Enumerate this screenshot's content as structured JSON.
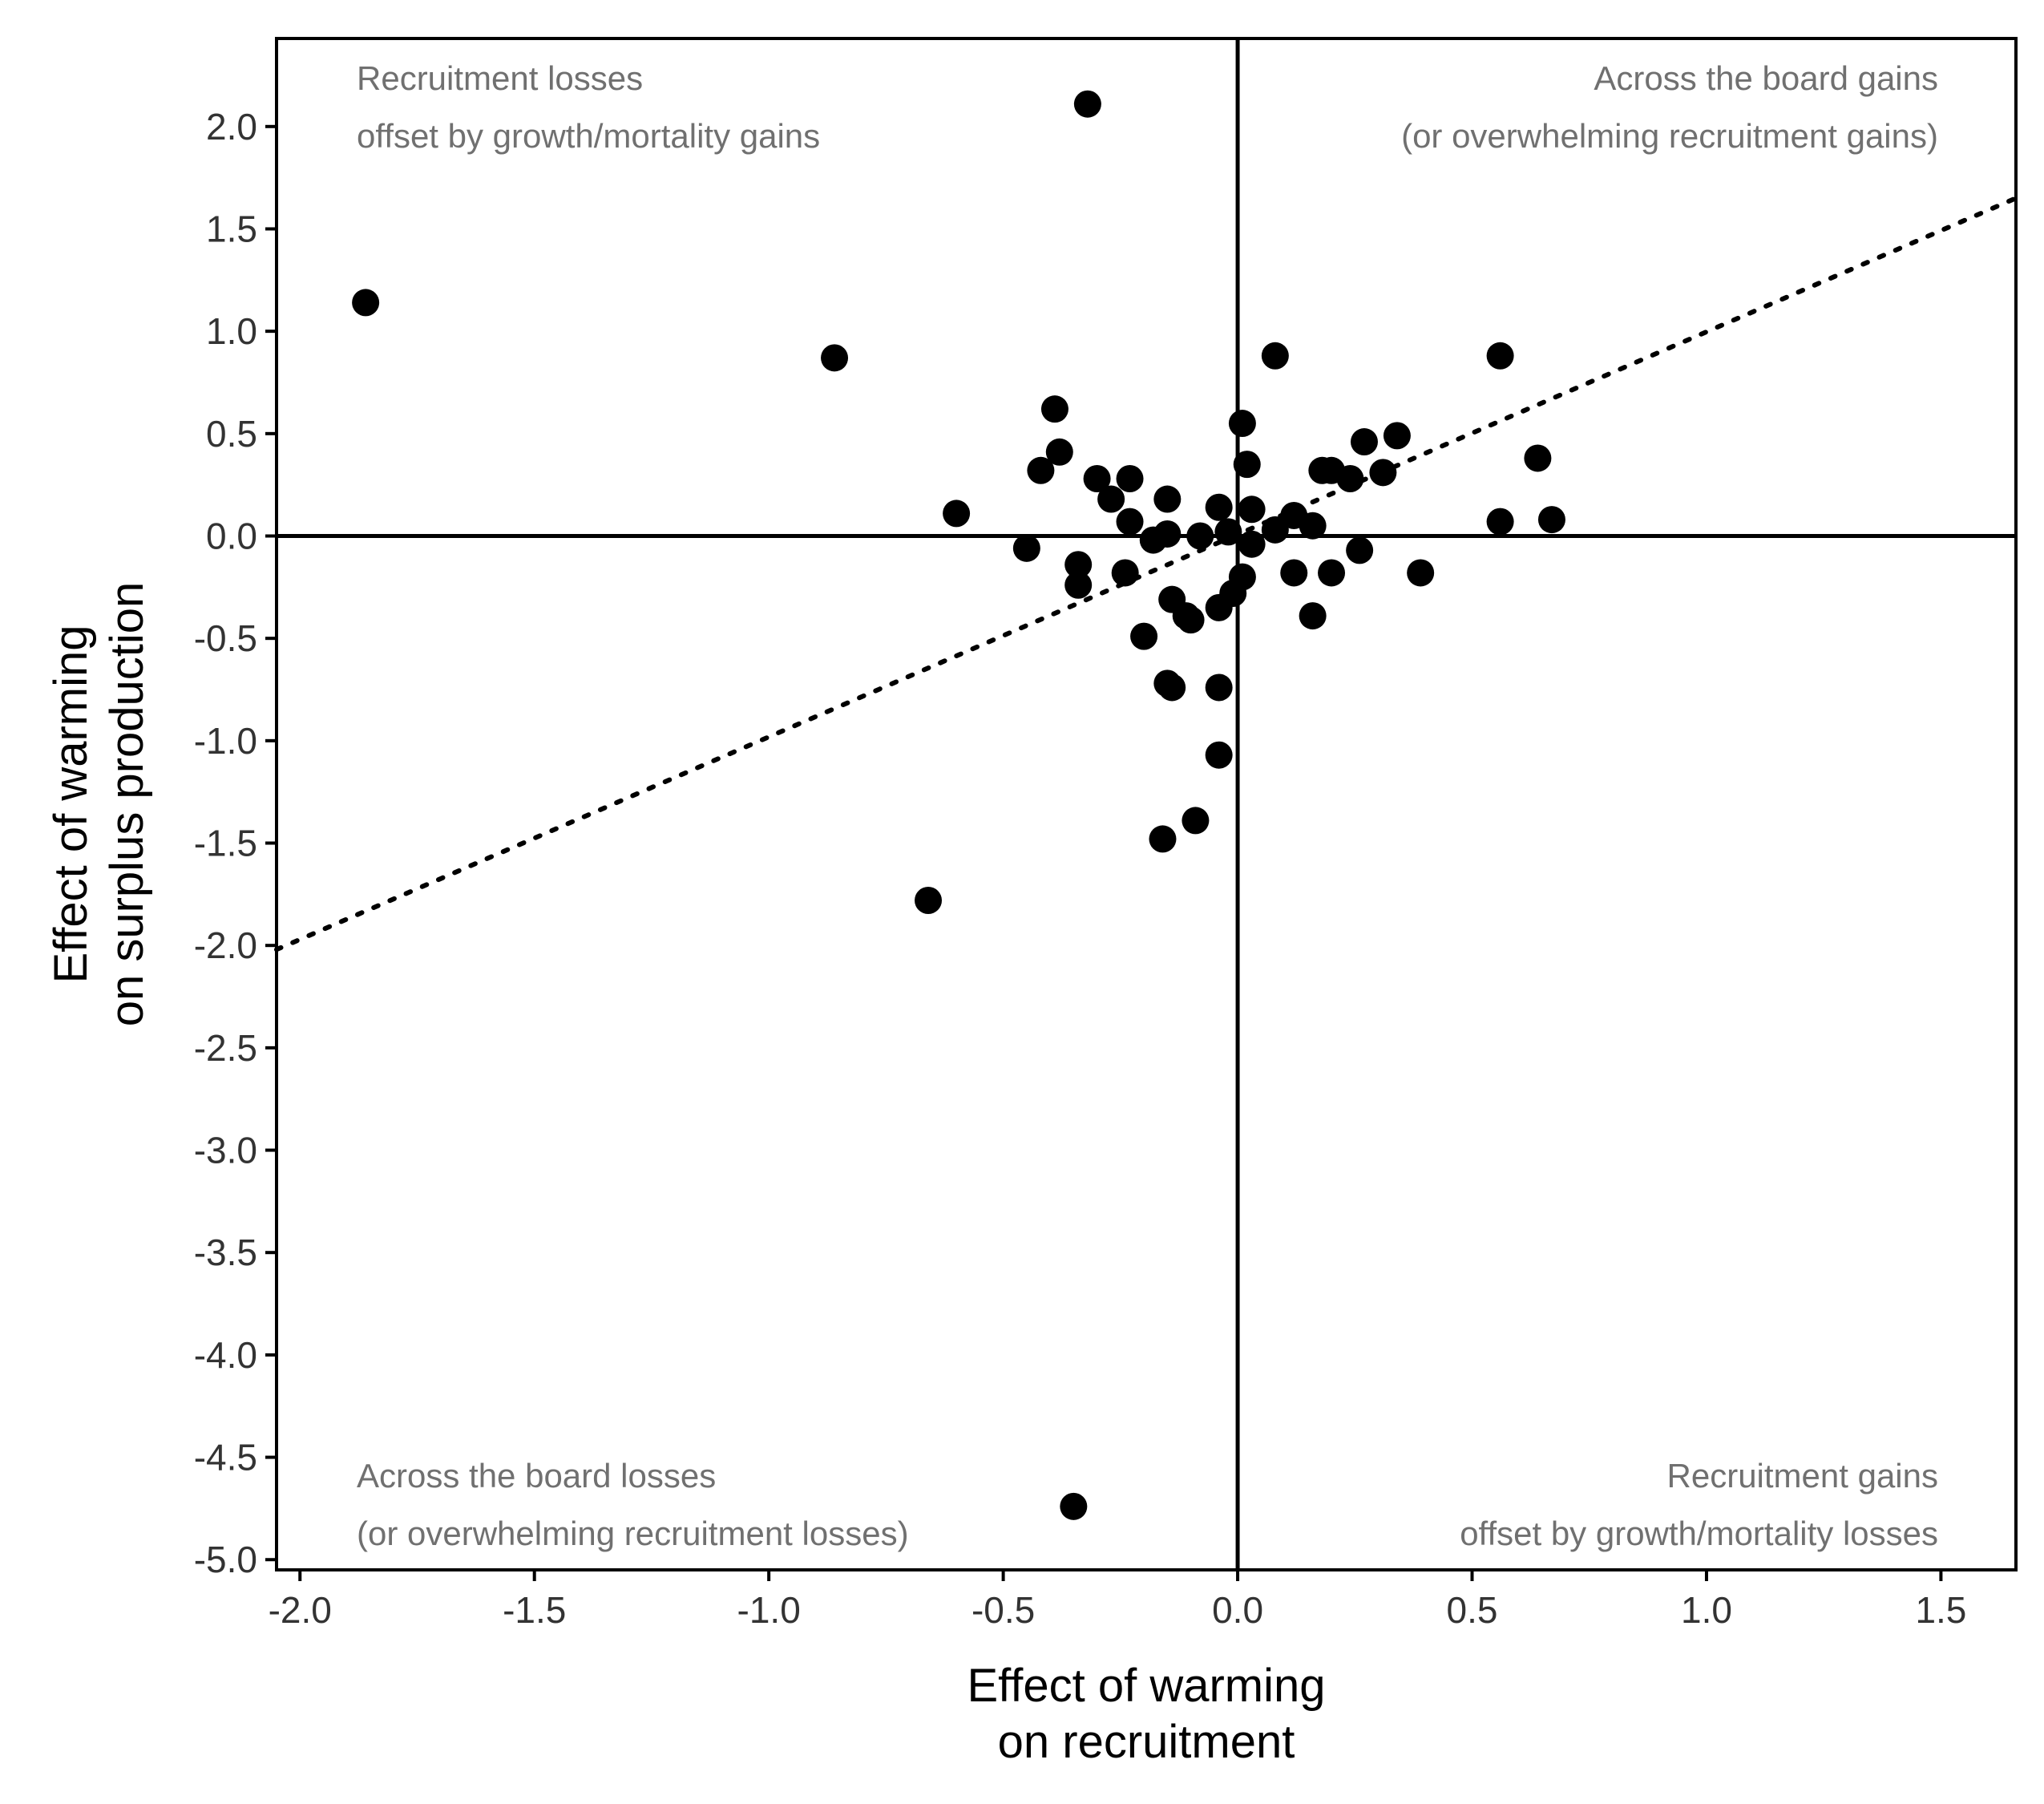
{
  "chart_data": {
    "type": "scatter",
    "xlabel": [
      "Effect of warming",
      "on recruitment"
    ],
    "ylabel": [
      "Effect of warming",
      "on surplus production"
    ],
    "xlim": [
      -2.05,
      1.66
    ],
    "ylim": [
      -5.05,
      2.43
    ],
    "xticks": [
      "-2.0",
      "-1.5",
      "-1.0",
      "-0.5",
      "0.0",
      "0.5",
      "1.0",
      "1.5"
    ],
    "xtick_values": [
      -2.0,
      -1.5,
      -1.0,
      -0.5,
      0.0,
      0.5,
      1.0,
      1.5
    ],
    "yticks": [
      "2.0",
      "1.5",
      "1.0",
      "0.5",
      "0.0",
      "-0.5",
      "-1.0",
      "-1.5",
      "-2.0",
      "-2.5",
      "-3.0",
      "-3.5",
      "-4.0",
      "-4.5",
      "-5.0"
    ],
    "ytick_values": [
      2.0,
      1.5,
      1.0,
      0.5,
      0.0,
      -0.5,
      -1.0,
      -1.5,
      -2.0,
      -2.5,
      -3.0,
      -3.5,
      -4.0,
      -4.5,
      -5.0
    ],
    "grid": false,
    "reference_lines": {
      "x": 0,
      "y": 0
    },
    "trend_line": {
      "style": "dotted",
      "x": [
        -2.05,
        1.66
      ],
      "y": [
        -2.02,
        1.65
      ]
    },
    "annotations": [
      {
        "position": "top-left",
        "lines": [
          "Recruitment losses",
          "offset by growth/mortality gains"
        ]
      },
      {
        "position": "top-right",
        "lines": [
          "Across the board gains",
          "(or overwhelming recruitment gains)"
        ]
      },
      {
        "position": "bottom-left",
        "lines": [
          "Across the board losses",
          "(or overwhelming recruitment losses)"
        ]
      },
      {
        "position": "bottom-right",
        "lines": [
          "Recruitment gains",
          "offset by growth/mortality losses"
        ]
      }
    ],
    "points": [
      {
        "x": -1.86,
        "y": 1.14
      },
      {
        "x": -0.86,
        "y": 0.87
      },
      {
        "x": -0.32,
        "y": 2.11
      },
      {
        "x": -0.6,
        "y": 0.11
      },
      {
        "x": -0.39,
        "y": 0.62
      },
      {
        "x": -0.38,
        "y": 0.41
      },
      {
        "x": -0.42,
        "y": 0.32
      },
      {
        "x": -0.3,
        "y": 0.28
      },
      {
        "x": -0.27,
        "y": 0.18
      },
      {
        "x": -0.23,
        "y": 0.28
      },
      {
        "x": -0.23,
        "y": 0.07
      },
      {
        "x": -0.18,
        "y": -0.02
      },
      {
        "x": -0.15,
        "y": 0.01
      },
      {
        "x": -0.15,
        "y": 0.18
      },
      {
        "x": -0.08,
        "y": 0.0
      },
      {
        "x": -0.04,
        "y": 0.14
      },
      {
        "x": -0.02,
        "y": 0.02
      },
      {
        "x": 0.01,
        "y": 0.55
      },
      {
        "x": 0.02,
        "y": 0.35
      },
      {
        "x": 0.03,
        "y": 0.13
      },
      {
        "x": 0.03,
        "y": -0.04
      },
      {
        "x": 0.08,
        "y": 0.88
      },
      {
        "x": 0.08,
        "y": 0.03
      },
      {
        "x": 0.12,
        "y": 0.1
      },
      {
        "x": 0.16,
        "y": 0.05
      },
      {
        "x": 0.18,
        "y": 0.32
      },
      {
        "x": 0.2,
        "y": 0.32
      },
      {
        "x": 0.24,
        "y": 0.28
      },
      {
        "x": 0.27,
        "y": 0.46
      },
      {
        "x": 0.31,
        "y": 0.31
      },
      {
        "x": 0.34,
        "y": 0.49
      },
      {
        "x": 0.56,
        "y": 0.88
      },
      {
        "x": 0.56,
        "y": 0.07
      },
      {
        "x": 0.64,
        "y": 0.38
      },
      {
        "x": 0.67,
        "y": 0.08
      },
      {
        "x": -0.45,
        "y": -0.06
      },
      {
        "x": -0.34,
        "y": -0.14
      },
      {
        "x": -0.34,
        "y": -0.24
      },
      {
        "x": -0.24,
        "y": -0.18
      },
      {
        "x": -0.14,
        "y": -0.31
      },
      {
        "x": -0.11,
        "y": -0.39
      },
      {
        "x": -0.1,
        "y": -0.41
      },
      {
        "x": -0.2,
        "y": -0.49
      },
      {
        "x": -0.04,
        "y": -0.35
      },
      {
        "x": -0.01,
        "y": -0.28
      },
      {
        "x": 0.01,
        "y": -0.2
      },
      {
        "x": 0.12,
        "y": -0.18
      },
      {
        "x": 0.2,
        "y": -0.18
      },
      {
        "x": 0.26,
        "y": -0.07
      },
      {
        "x": 0.39,
        "y": -0.18
      },
      {
        "x": 0.16,
        "y": -0.39
      },
      {
        "x": -0.15,
        "y": -0.72
      },
      {
        "x": -0.14,
        "y": -0.74
      },
      {
        "x": -0.04,
        "y": -0.74
      },
      {
        "x": -0.04,
        "y": -1.07
      },
      {
        "x": -0.16,
        "y": -1.48
      },
      {
        "x": -0.09,
        "y": -1.39
      },
      {
        "x": -0.66,
        "y": -1.78
      },
      {
        "x": -0.35,
        "y": -4.74
      }
    ]
  }
}
